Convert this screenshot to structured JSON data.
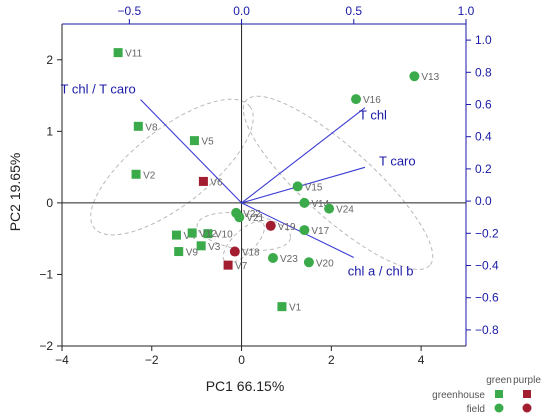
{
  "chart_data": {
    "type": "scatter",
    "subtype": "pca-biplot",
    "xlabel": "PC1 66.15%",
    "ylabel": "PC2 19.65%",
    "xlim": [
      -4,
      5
    ],
    "ylim": [
      -2,
      2.5
    ],
    "x_ticks": [
      "−4",
      "−2",
      "0",
      "2",
      "4"
    ],
    "y_ticks": [
      "−2",
      "−1",
      "0",
      "1",
      "2"
    ],
    "top_axis": {
      "range": [
        -0.8,
        1.0
      ],
      "ticks": [
        "−0.5",
        "0.0",
        "0.5",
        "1.0"
      ],
      "color": "#1a1aa6"
    },
    "right_axis": {
      "range": [
        -0.9,
        1.1
      ],
      "ticks": [
        "1.0",
        "0.8",
        "0.6",
        "0.4",
        "0.2",
        "0.0",
        "−0.2",
        "−0.4",
        "−0.6",
        "−0.8"
      ],
      "color": "#1a1aa6"
    },
    "grid": false,
    "colors": {
      "green": "#3aaa4a",
      "purple": "#a11d2f",
      "loading": "#3b3bd6",
      "loading_label": "#1a1aa6",
      "ellipse": "#b9b9b9",
      "point_label": "#666666"
    },
    "points": [
      {
        "label": "V1",
        "x": 0.9,
        "y": -1.45,
        "marker": "square",
        "color": "green"
      },
      {
        "label": "V2",
        "x": -2.35,
        "y": 0.4,
        "marker": "square",
        "color": "green"
      },
      {
        "label": "V3",
        "x": -0.9,
        "y": -0.6,
        "marker": "square",
        "color": "green"
      },
      {
        "label": "V4",
        "x": -1.45,
        "y": -0.45,
        "marker": "square",
        "color": "green"
      },
      {
        "label": "V5",
        "x": -1.05,
        "y": 0.87,
        "marker": "square",
        "color": "green"
      },
      {
        "label": "V6",
        "x": -0.85,
        "y": 0.3,
        "marker": "square",
        "color": "purple"
      },
      {
        "label": "V7",
        "x": -0.3,
        "y": -0.87,
        "marker": "square",
        "color": "purple"
      },
      {
        "label": "V8",
        "x": -2.3,
        "y": 1.07,
        "marker": "square",
        "color": "green"
      },
      {
        "label": "V9",
        "x": -1.4,
        "y": -0.68,
        "marker": "square",
        "color": "green"
      },
      {
        "label": "V10",
        "x": -0.75,
        "y": -0.43,
        "marker": "square",
        "color": "green"
      },
      {
        "label": "V11",
        "x": -2.75,
        "y": 2.1,
        "marker": "square",
        "color": "green"
      },
      {
        "label": "V12",
        "x": -1.1,
        "y": -0.42,
        "marker": "square",
        "color": "green"
      },
      {
        "label": "V13",
        "x": 3.85,
        "y": 1.77,
        "marker": "circle",
        "color": "green"
      },
      {
        "label": "V14",
        "x": 1.4,
        "y": 0.0,
        "marker": "circle",
        "color": "green"
      },
      {
        "label": "V15",
        "x": 1.25,
        "y": 0.23,
        "marker": "circle",
        "color": "green"
      },
      {
        "label": "V16",
        "x": 2.55,
        "y": 1.45,
        "marker": "circle",
        "color": "green"
      },
      {
        "label": "V17",
        "x": 1.4,
        "y": -0.38,
        "marker": "circle",
        "color": "green"
      },
      {
        "label": "V18",
        "x": -0.15,
        "y": -0.68,
        "marker": "circle",
        "color": "purple"
      },
      {
        "label": "V19",
        "x": 0.65,
        "y": -0.32,
        "marker": "circle",
        "color": "purple"
      },
      {
        "label": "V20",
        "x": 1.5,
        "y": -0.83,
        "marker": "circle",
        "color": "green"
      },
      {
        "label": "V21",
        "x": -0.05,
        "y": -0.2,
        "marker": "circle",
        "color": "green"
      },
      {
        "label": "V22",
        "x": -0.12,
        "y": -0.14,
        "marker": "circle",
        "color": "green"
      },
      {
        "label": "V23",
        "x": 0.7,
        "y": -0.77,
        "marker": "circle",
        "color": "green"
      },
      {
        "label": "V24",
        "x": 1.95,
        "y": -0.08,
        "marker": "circle",
        "color": "green"
      }
    ],
    "loadings": [
      {
        "label": "T chl / T caro",
        "x": -0.45,
        "y": 0.63
      },
      {
        "label": "T chl",
        "x": 0.55,
        "y": 0.58
      },
      {
        "label": "T caro",
        "x": 0.55,
        "y": 0.21
      },
      {
        "label": "chl a / chl b",
        "x": 0.5,
        "y": -0.35
      }
    ],
    "legend": {
      "columns": [
        "green",
        "purple"
      ],
      "rows": [
        "greenhouse",
        "field"
      ],
      "placement": "bottom-right"
    }
  }
}
